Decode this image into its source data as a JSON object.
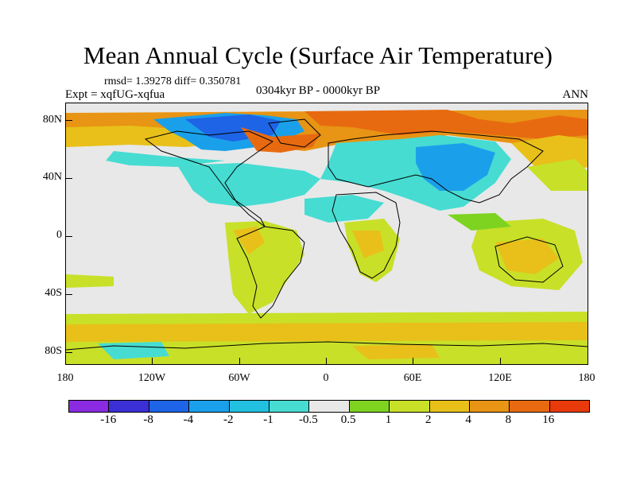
{
  "title": "Mean Annual Cycle (Surface Air Temperature)",
  "stats": "rmsd= 1.39278 diff= 0.350781",
  "experiment": "Expt = xqfUG-xqfua",
  "period": "0304kyr BP - 0000kyr BP",
  "season": "ANN",
  "y_axis_labels": [
    "80N",
    "40N",
    "0",
    "40S",
    "80S"
  ],
  "x_axis_labels": [
    "180",
    "120W",
    "60W",
    "0",
    "60E",
    "120E",
    "180"
  ],
  "colorbar": {
    "colors": [
      "#8a2be2",
      "#3b2fd6",
      "#1e64e6",
      "#1aa0ea",
      "#22c0e0",
      "#46dcd2",
      "#e8e8e8",
      "#7ed321",
      "#c8e028",
      "#e8c019",
      "#e89414",
      "#e86a10",
      "#e83a0a"
    ],
    "labels": [
      "-16",
      "-8",
      "-4",
      "-2",
      "-1",
      "-0.5",
      "0.5",
      "1",
      "2",
      "4",
      "8",
      "16"
    ]
  }
}
